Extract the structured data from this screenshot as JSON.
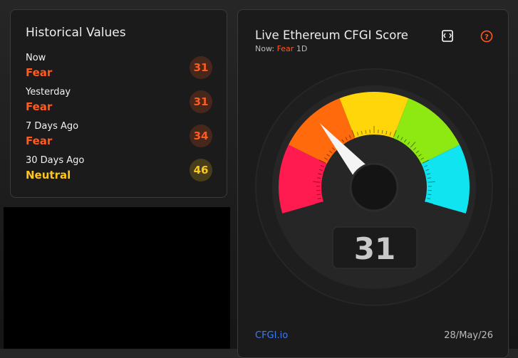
{
  "historical": {
    "title": "Historical Values",
    "rows": [
      {
        "label": "Now",
        "sentiment": "Fear",
        "value": 31,
        "color": "#ff5a1f"
      },
      {
        "label": "Yesterday",
        "sentiment": "Fear",
        "value": 31,
        "color": "#ff5a1f"
      },
      {
        "label": "7 Days Ago",
        "sentiment": "Fear",
        "value": 34,
        "color": "#ff5a1f"
      },
      {
        "label": "30 Days Ago",
        "sentiment": "Neutral",
        "value": 46,
        "color": "#ffc61a"
      }
    ]
  },
  "live": {
    "title": "Live Ethereum CFGI Score",
    "now_prefix": "Now:",
    "now_sentiment": "Fear",
    "timeframe": "1D",
    "score": 31,
    "lim": [
      0,
      100
    ],
    "segment_colors": [
      "#ff1a4f",
      "#ff6a0d",
      "#ffd60a",
      "#8ee812",
      "#10e4f0"
    ],
    "source": "CFGI.io",
    "date": "28/May/26"
  }
}
